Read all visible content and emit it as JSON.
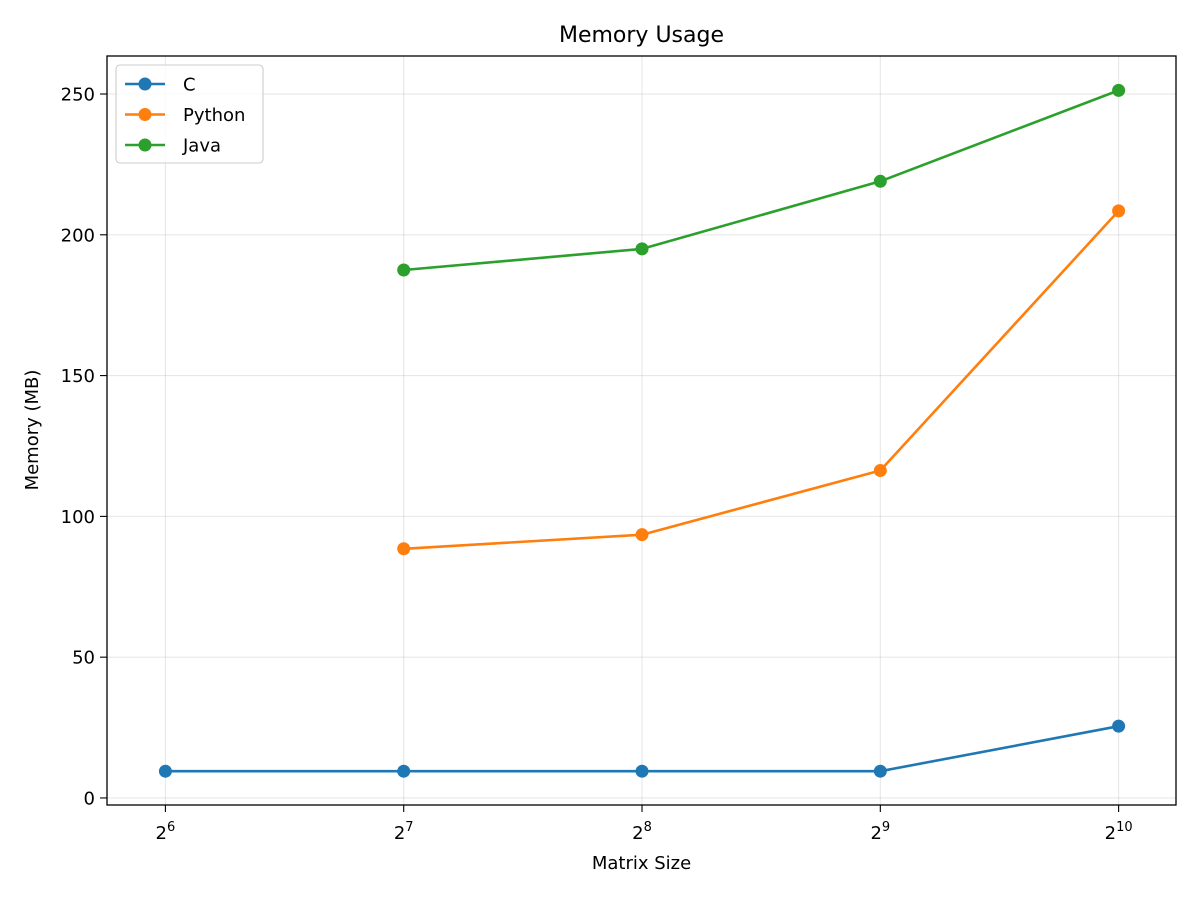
{
  "chart_data": {
    "type": "line",
    "title": "Memory Usage",
    "xlabel": "Matrix Size",
    "ylabel": "Memory (MB)",
    "x_scale": "log2",
    "x_ticks": [
      {
        "value": 64,
        "base": "2",
        "exp": "6"
      },
      {
        "value": 128,
        "base": "2",
        "exp": "7"
      },
      {
        "value": 256,
        "base": "2",
        "exp": "8"
      },
      {
        "value": 512,
        "base": "2",
        "exp": "9"
      },
      {
        "value": 1024,
        "base": "2",
        "exp": "10"
      }
    ],
    "xlim": [
      54,
      1210
    ],
    "y_ticks": [
      0,
      50,
      100,
      150,
      200,
      250
    ],
    "ylim": [
      -2.5,
      263.5
    ],
    "grid": true,
    "legend_position": "top-left",
    "series": [
      {
        "name": "C",
        "color": "#1f77b4",
        "x": [
          64,
          128,
          256,
          512,
          1024
        ],
        "values": [
          9.5,
          9.5,
          9.5,
          9.5,
          25.5
        ]
      },
      {
        "name": "Python",
        "color": "#ff7f0e",
        "x": [
          128,
          256,
          512,
          1024
        ],
        "values": [
          88.5,
          93.5,
          116.3,
          208.5
        ]
      },
      {
        "name": "Java",
        "color": "#2ca02c",
        "x": [
          128,
          256,
          512,
          1024
        ],
        "values": [
          187.5,
          195.0,
          219.0,
          251.3
        ]
      }
    ]
  }
}
